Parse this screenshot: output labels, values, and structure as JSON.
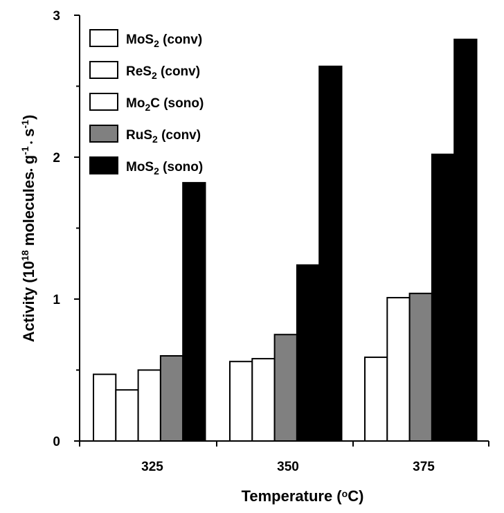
{
  "chart_data": {
    "type": "bar",
    "x": [
      325,
      350,
      375
    ],
    "xlabel": {
      "main": "Temperature (",
      "sup": "o",
      "tail": "C)"
    },
    "ylabel": {
      "p1": "Activity (10",
      "sup1": "18",
      "p2": " molecules",
      "dot1": "•",
      "p3": " g",
      "sup2": "-1",
      "dot2": " •",
      "p4": " s",
      "sup3": "-1",
      "p5": ")"
    },
    "ylim": [
      0,
      3
    ],
    "yticks": [
      0,
      1,
      2,
      3
    ],
    "yminor": [
      0.5,
      1.5,
      2.5
    ],
    "legend_position": "top-left",
    "series": [
      {
        "name": "MoS",
        "sub": "2",
        "suffix": " (conv)",
        "color": "#ffffff",
        "values": [
          0.47,
          null,
          null
        ]
      },
      {
        "name": "ReS",
        "sub": "2",
        "suffix": " (conv)",
        "color": "#ffffff",
        "values": [
          0.36,
          0.56,
          0.59
        ]
      },
      {
        "name": "Mo",
        "sub": "2",
        "suffix": "C (sono)",
        "color": "#ffffff",
        "values": [
          0.5,
          0.58,
          1.01
        ]
      },
      {
        "name": "RuS",
        "sub": "2",
        "suffix": " (conv)",
        "color": "#808080",
        "values": [
          0.6,
          0.75,
          1.04
        ]
      },
      {
        "name": "MoS",
        "sub": "2",
        "suffix": " (sono)",
        "color": "#000000",
        "values": [
          1.82,
          1.24,
          2.02
        ]
      }
    ],
    "extra_bars": [
      {
        "category_index": 1,
        "value": 2.64,
        "color": "#000000"
      },
      {
        "category_index": 2,
        "value": 2.83,
        "color": "#000000"
      }
    ]
  }
}
